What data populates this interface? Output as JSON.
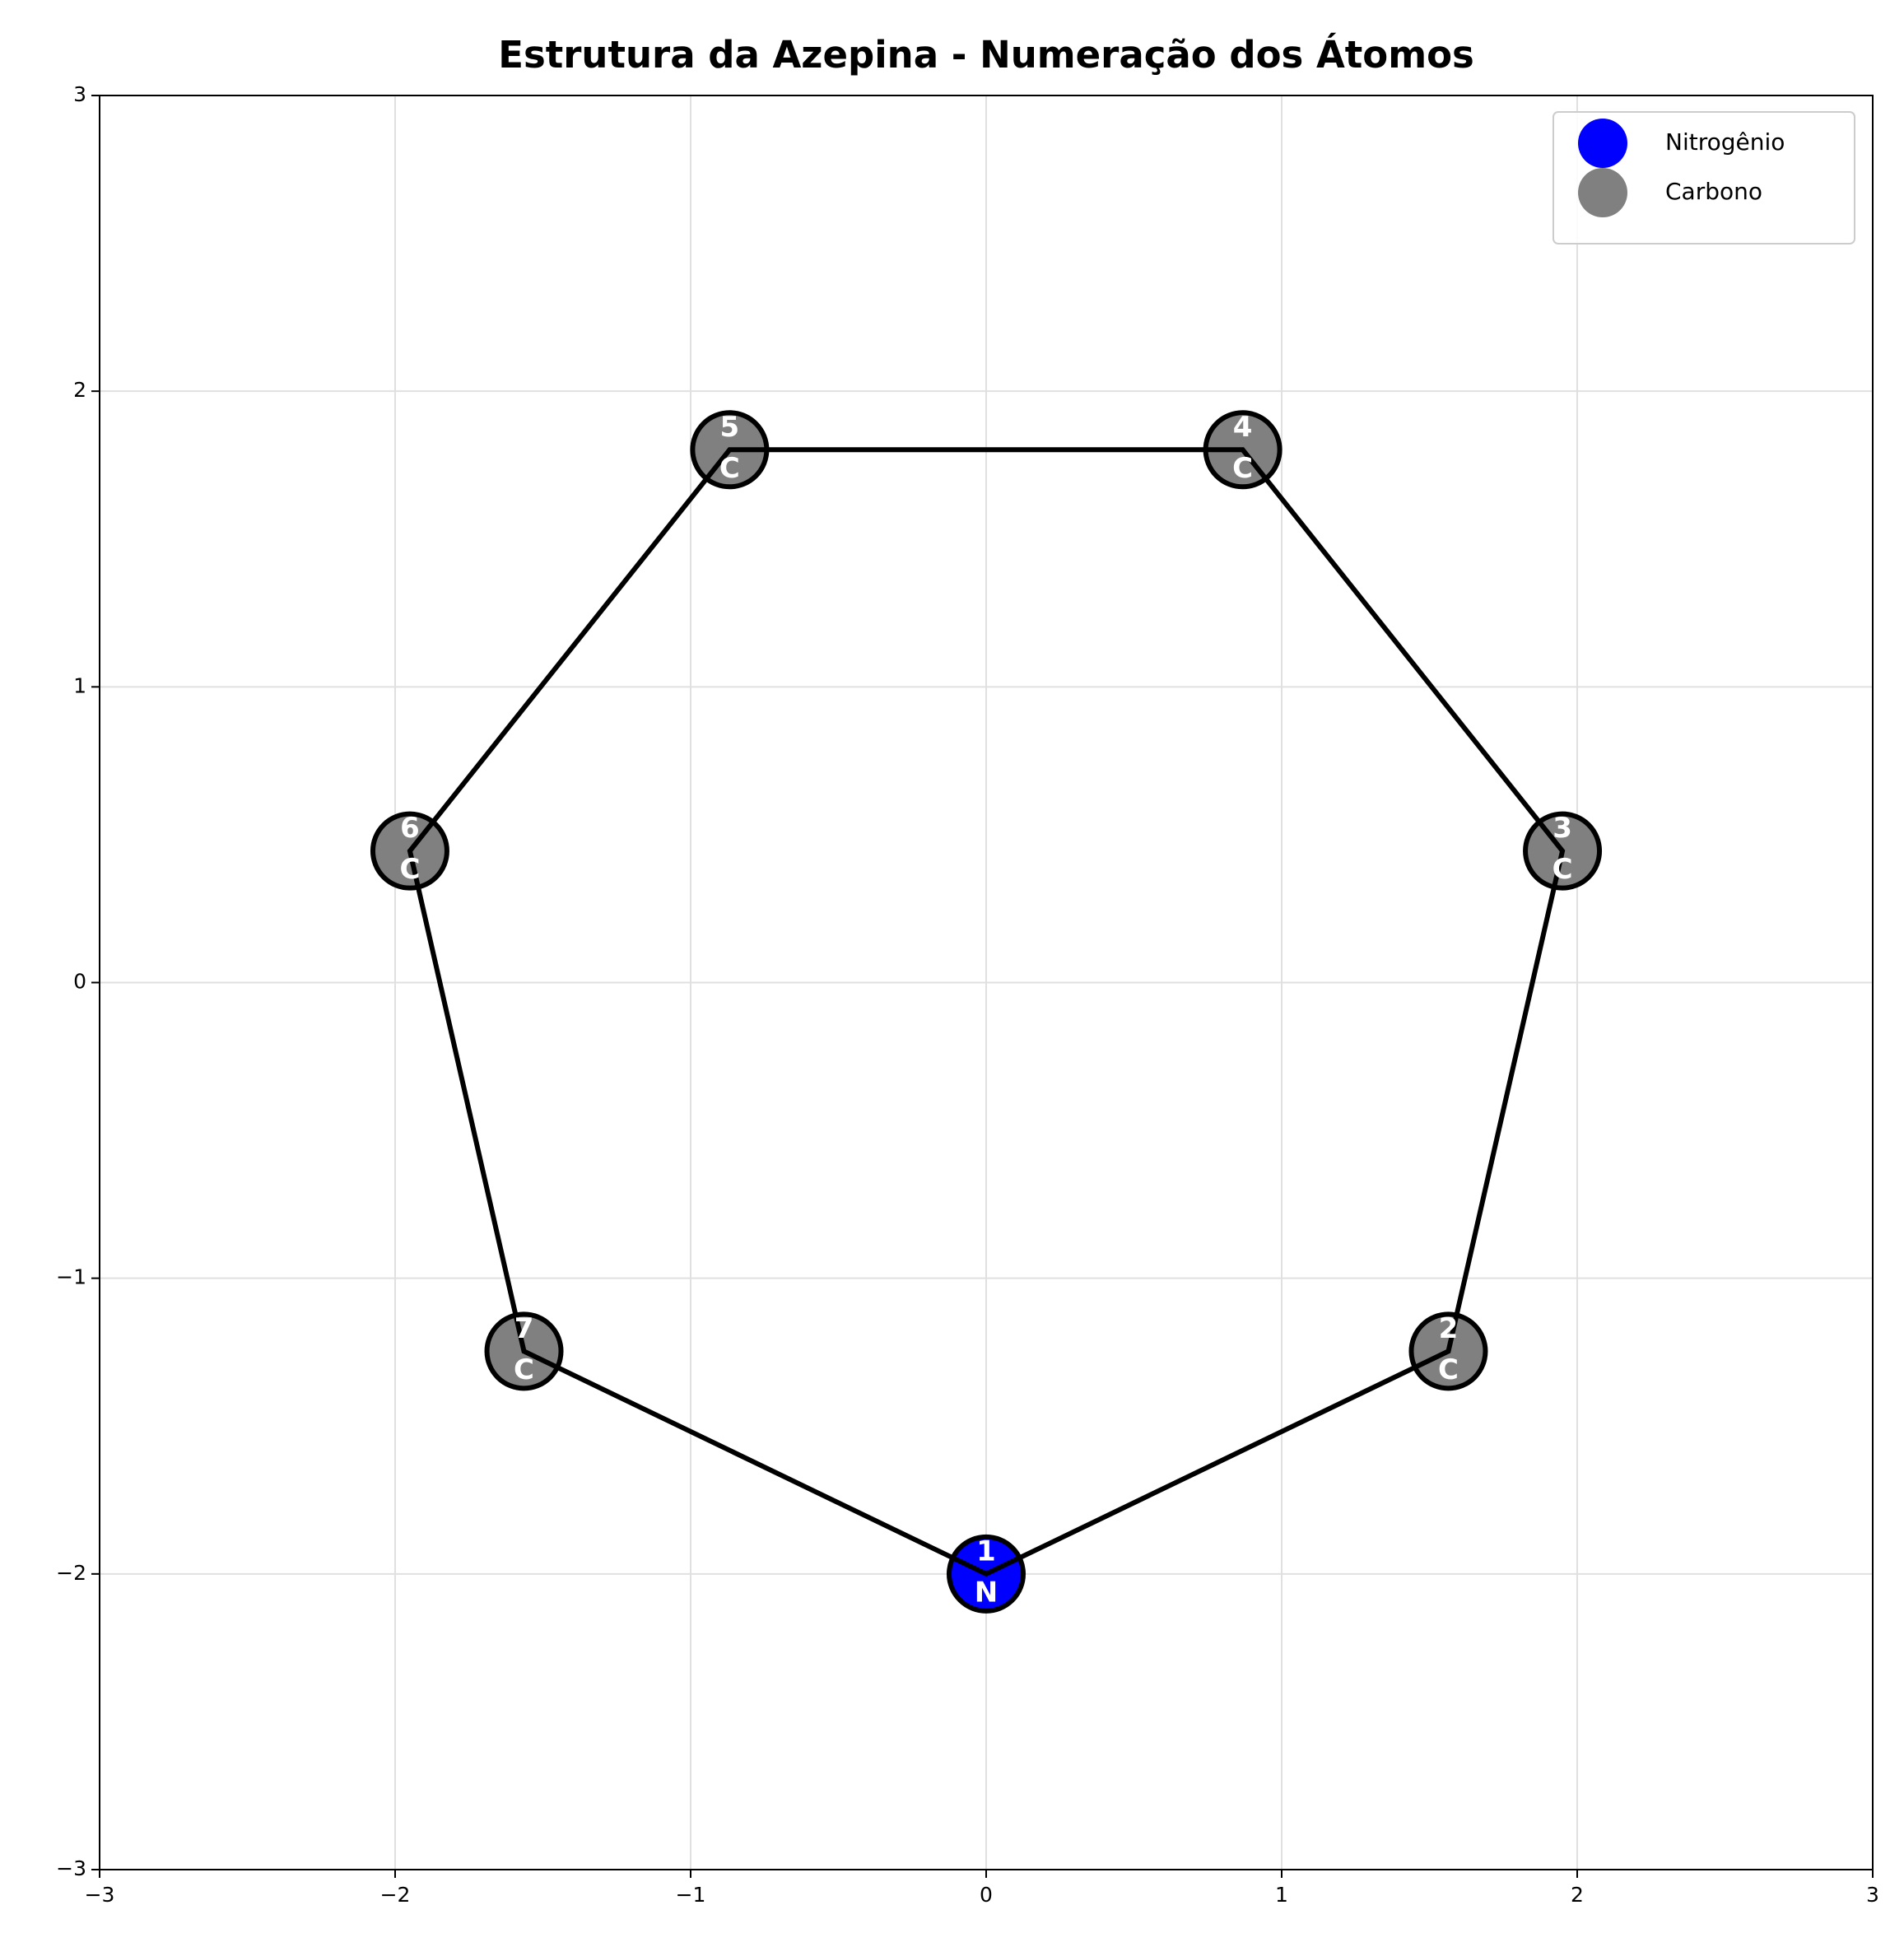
{
  "chart_data": {
    "type": "scatter",
    "title": "Estrutura da Azepina - Numeração dos Átomos",
    "xlim": [
      -3,
      3
    ],
    "ylim": [
      -3,
      3
    ],
    "xticks": [
      {
        "value": -3,
        "label": "−3"
      },
      {
        "value": -2,
        "label": "−2"
      },
      {
        "value": -1,
        "label": "−1"
      },
      0,
      1,
      2,
      3
    ],
    "yticks": [
      {
        "value": -3,
        "label": "−3"
      },
      {
        "value": -2,
        "label": "−2"
      },
      {
        "value": -1,
        "label": "−1"
      },
      0,
      1,
      2,
      3
    ],
    "grid": true,
    "legend": "upper right",
    "ring": {
      "color": "#000000",
      "x": [
        0,
        1.564,
        1.95,
        0.868,
        -0.868,
        -1.95,
        -1.564
      ],
      "values": [
        -2,
        -1.247,
        0.445,
        1.802,
        1.802,
        0.445,
        -1.247
      ]
    },
    "series": [
      {
        "name": "Nitrogênio",
        "color": "#0000ff",
        "symbol": "N",
        "x": [
          0
        ],
        "values": [
          -2
        ],
        "labels": [
          "1"
        ]
      },
      {
        "name": "Carbono",
        "color": "#808080",
        "symbol": "C",
        "x": [
          1.564,
          1.95,
          0.868,
          -0.868,
          -1.95,
          -1.564
        ],
        "values": [
          -1.247,
          0.445,
          1.802,
          1.802,
          0.445,
          -1.247
        ],
        "labels": [
          "2",
          "3",
          "4",
          "5",
          "6",
          "7"
        ]
      }
    ]
  }
}
